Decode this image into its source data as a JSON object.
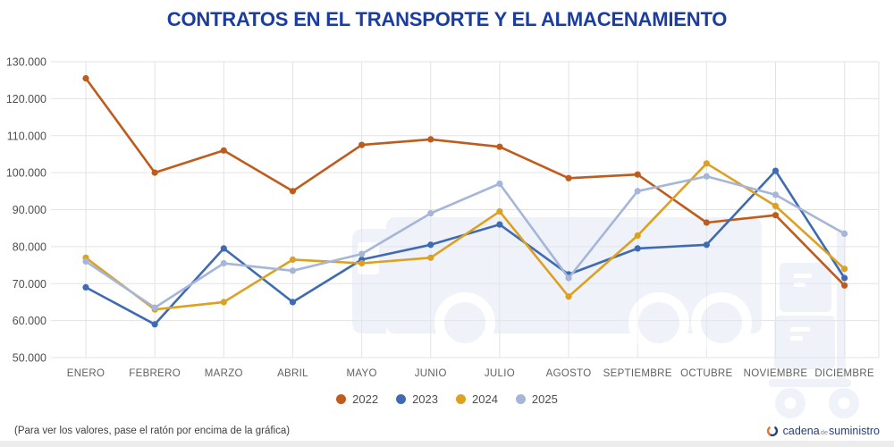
{
  "page": {
    "title": "CONTRATOS EN EL TRANSPORTE Y EL ALMACENAMIENTO",
    "hint": "(Para ver los valores, pase el ratón por encima de la gráfica)"
  },
  "logo": {
    "word1": "cadena",
    "word2": "de",
    "word3": "suministro"
  },
  "colors": {
    "title": "#1C3DA0",
    "grid": "#E3E3E3",
    "axis_label_y": "#4F4F4F",
    "axis_label_x": "#616161",
    "legend_label": "#4D4D4D",
    "watermark": "#E2E8F3",
    "logo_navy": "#24407E",
    "logo_orange": "#E0762F",
    "series_2022": "#BE5C1E",
    "series_2023": "#3F6BB4",
    "series_2024": "#DDA122",
    "series_2025": "#A5B6D9"
  },
  "chart_data": {
    "type": "line",
    "title": "CONTRATOS EN EL TRANSPORTE Y EL ALMACENAMIENTO",
    "xlabel": "",
    "ylabel": "",
    "categories": [
      "ENERO",
      "FEBRERO",
      "MARZO",
      "ABRIL",
      "MAYO",
      "JUNIO",
      "JULIO",
      "AGOSTO",
      "SEPTIEMBRE",
      "OCTUBRE",
      "NOVIEMBRE",
      "DICIEMBRE"
    ],
    "series": [
      {
        "name": "2022",
        "color": "#BE5C1E",
        "values": [
          125500,
          100000,
          106000,
          95000,
          107500,
          109000,
          107000,
          98500,
          99500,
          86500,
          88500,
          69500
        ]
      },
      {
        "name": "2023",
        "color": "#3F6BB4",
        "values": [
          69000,
          59000,
          79500,
          65000,
          76500,
          80500,
          86000,
          72500,
          79500,
          80500,
          100500,
          71500
        ]
      },
      {
        "name": "2024",
        "color": "#DDA122",
        "values": [
          77000,
          63000,
          65000,
          76500,
          75500,
          77000,
          89500,
          66500,
          83000,
          102500,
          91000,
          74000
        ]
      },
      {
        "name": "2025",
        "color": "#A5B6D9",
        "values": [
          76000,
          63500,
          75500,
          73500,
          78000,
          89000,
          97000,
          71500,
          95000,
          99000,
          94000,
          83500
        ]
      }
    ],
    "ylim": [
      50000,
      130000
    ],
    "ytick_step": 10000,
    "y_ticks": [
      "130.000",
      "120.000",
      "110.000",
      "100.000",
      "90.000",
      "80.000",
      "70.000",
      "60.000",
      "50.000"
    ],
    "grid": true,
    "legend_position": "bottom"
  }
}
